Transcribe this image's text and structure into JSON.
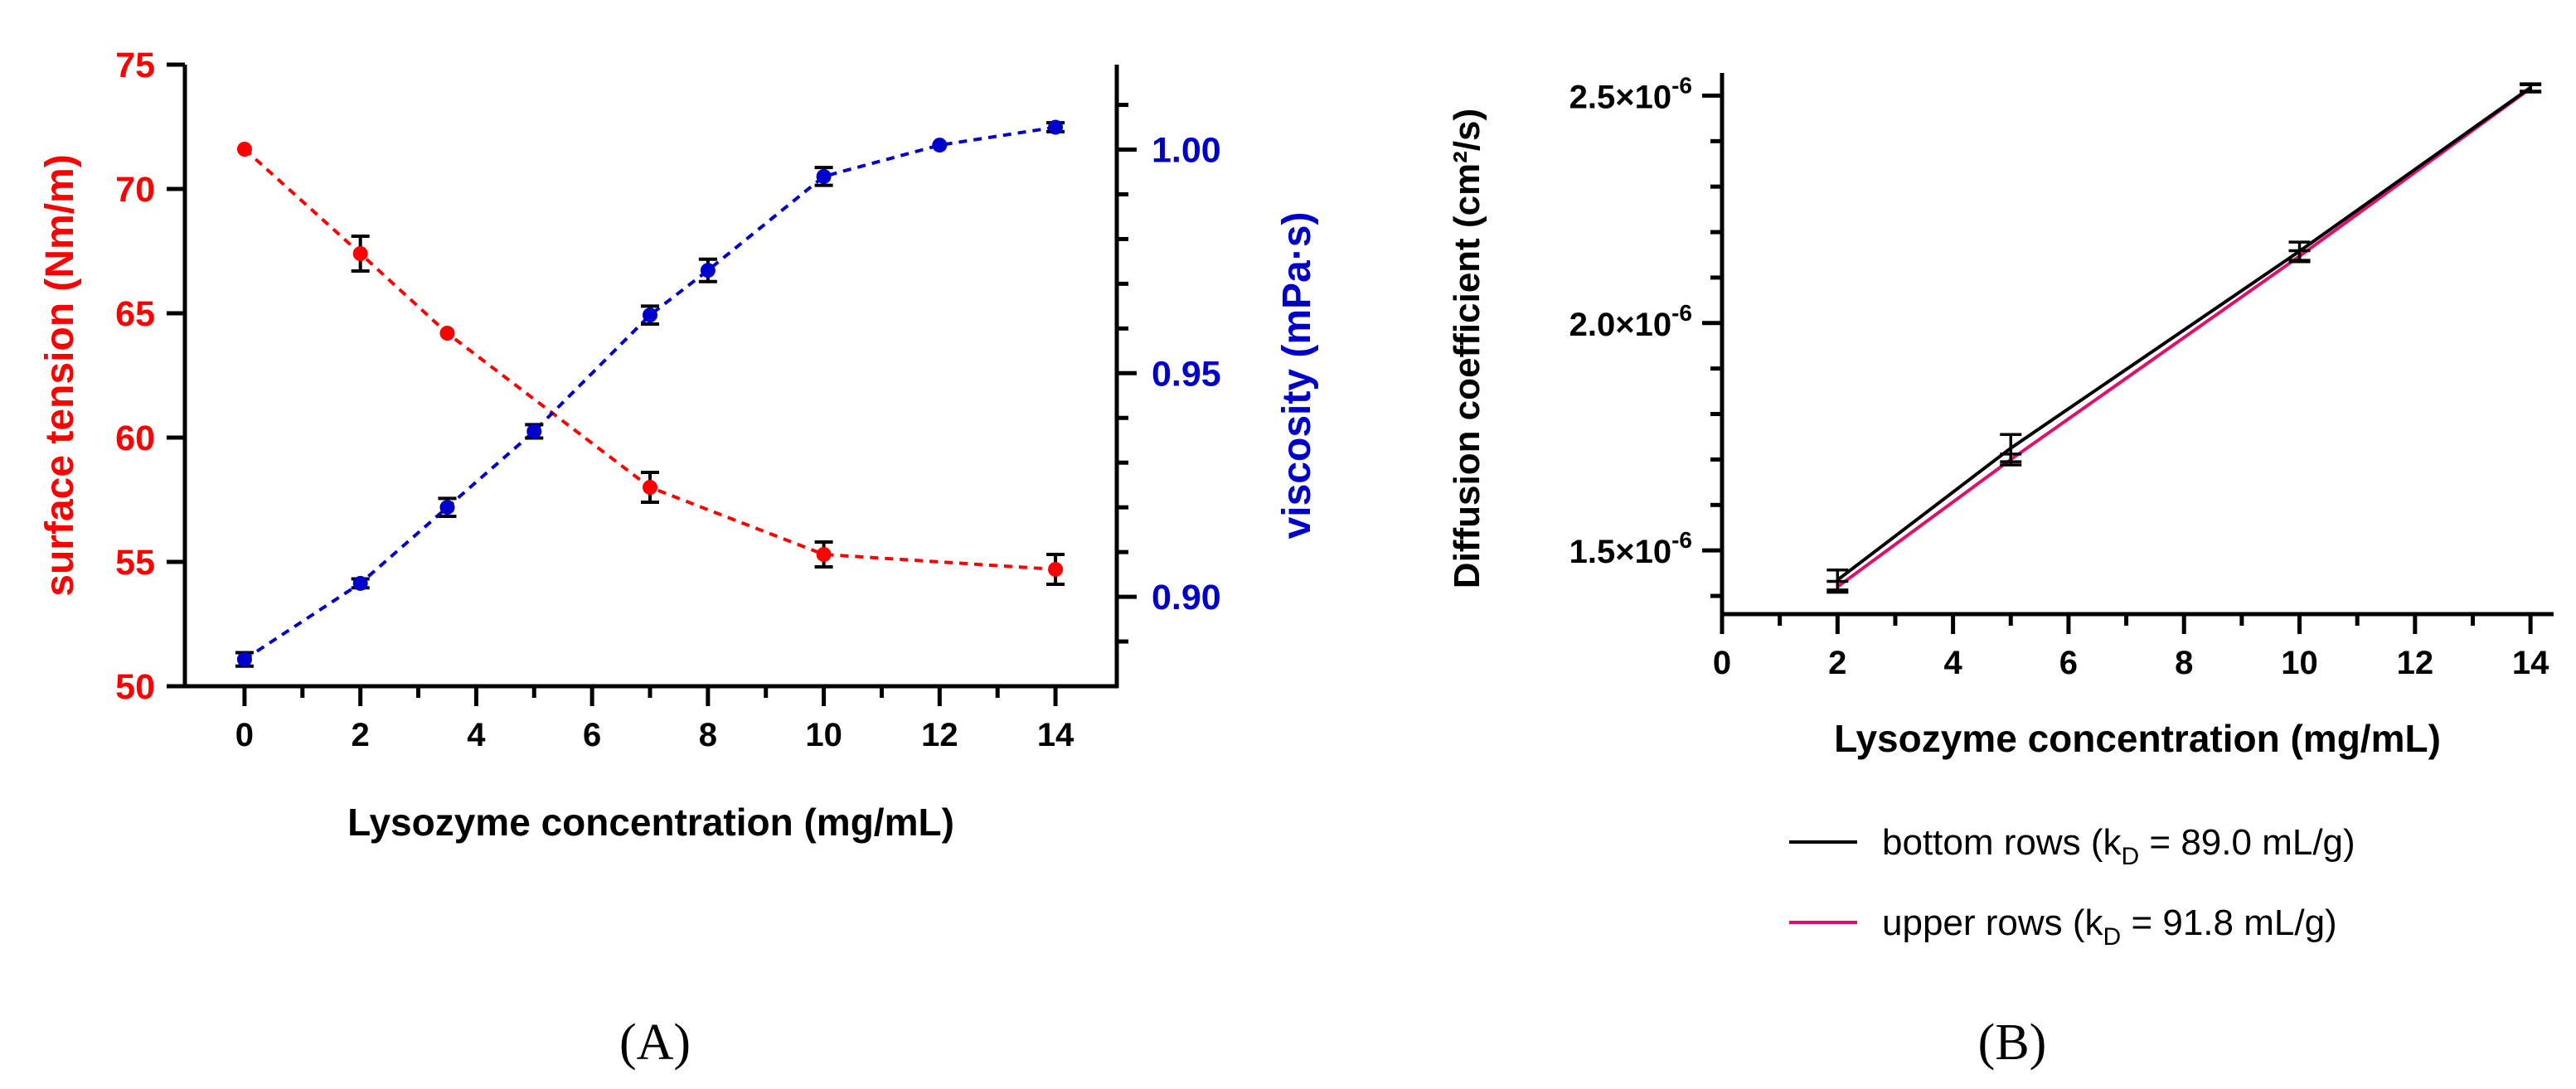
{
  "chart_data": [
    {
      "type": "line",
      "panel_label": "(A)",
      "xlabel": "Lysozyme concentration (mg/mL)",
      "xlim": [
        -0.5,
        14.5
      ],
      "xticks": [
        0,
        2,
        4,
        6,
        8,
        10,
        12,
        14
      ],
      "x_minor_ticks": [
        1,
        3,
        5,
        7,
        9,
        11,
        13
      ],
      "grid": false,
      "axes": {
        "left": {
          "label": "surface tension (Nm/m)",
          "color": "#ff0000",
          "ylim": [
            50,
            75
          ],
          "ticks": [
            50,
            55,
            60,
            65,
            70,
            75
          ]
        },
        "right": {
          "label": "viscosity (mPa·s)",
          "color": "#0000cc",
          "ylim": [
            0.88,
            1.019
          ],
          "ticks": [
            0.9,
            0.95,
            1.0
          ],
          "tick_labels": [
            "0.90",
            "0.95",
            "1.00"
          ],
          "minor_ticks": [
            0.89,
            0.91,
            0.92,
            0.93,
            0.94,
            0.96,
            0.97,
            0.98,
            0.99,
            1.01
          ]
        }
      },
      "series": [
        {
          "name": "surface tension",
          "axis": "left",
          "color": "#ff0000",
          "x": [
            0,
            2,
            3.5,
            7,
            10,
            14
          ],
          "values": [
            71.6,
            67.4,
            64.2,
            58.0,
            55.3,
            54.7
          ],
          "errors": [
            0,
            0.7,
            0,
            0.6,
            0.5,
            0.6
          ]
        },
        {
          "name": "viscosity",
          "axis": "right",
          "color": "#0000cc",
          "x": [
            0,
            2,
            3.5,
            5,
            7,
            8,
            10,
            12,
            14
          ],
          "values": [
            0.886,
            0.903,
            0.92,
            0.937,
            0.963,
            0.973,
            0.994,
            1.001,
            1.005
          ],
          "errors": [
            0.0015,
            0.001,
            0.002,
            0.0015,
            0.002,
            0.0025,
            0.002,
            0,
            0.001
          ]
        }
      ]
    },
    {
      "type": "line",
      "panel_label": "(B)",
      "xlabel": "Lysozyme concentration (mg/mL)",
      "ylabel": "Diffusion coefficient (cm²/s)",
      "xlim": [
        0,
        14.4
      ],
      "ylim": [
        1.36e-06,
        2.55e-06
      ],
      "xticks": [
        0,
        2,
        4,
        6,
        8,
        10,
        12,
        14
      ],
      "x_minor_ticks": [
        1,
        3,
        5,
        7,
        9,
        11,
        13
      ],
      "yticks": [
        1.5e-06,
        2e-06,
        2.5e-06
      ],
      "ytick_labels": [
        {
          "mantissa": "1.5×10",
          "exponent": "-6"
        },
        {
          "mantissa": "2.0×10",
          "exponent": "-6"
        },
        {
          "mantissa": "2.5×10",
          "exponent": "-6"
        }
      ],
      "y_minor_ticks": [
        1.4e-06,
        1.6e-06,
        1.7e-06,
        1.8e-06,
        1.9e-06,
        2.1e-06,
        2.2e-06,
        2.3e-06,
        2.4e-06
      ],
      "grid": false,
      "legend_position": "below",
      "series": [
        {
          "name": "bottom rows",
          "legend": {
            "prefix": "bottom rows (k",
            "subscript": "D",
            "suffix": " = 89.0 mL/g)"
          },
          "color": "#000000",
          "x": [
            2,
            5,
            10,
            14
          ],
          "values": [
            1.435e-06,
            1.725e-06,
            2.158e-06,
            2.518e-06
          ],
          "errors": [
            2.2e-08,
            3e-08,
            2e-08,
            8e-09
          ]
        },
        {
          "name": "upper rows",
          "legend": {
            "prefix": "upper rows (k",
            "subscript": "D",
            "suffix": "  = 91.8 mL/g)"
          },
          "color": "#e0106a",
          "x": [
            2,
            5,
            10,
            14
          ],
          "values": [
            1.42e-06,
            1.7e-06,
            2.147e-06,
            2.516e-06
          ],
          "errors": [
            1.2e-08,
            1.2e-08,
            1.2e-08,
            8e-09
          ]
        }
      ]
    }
  ]
}
